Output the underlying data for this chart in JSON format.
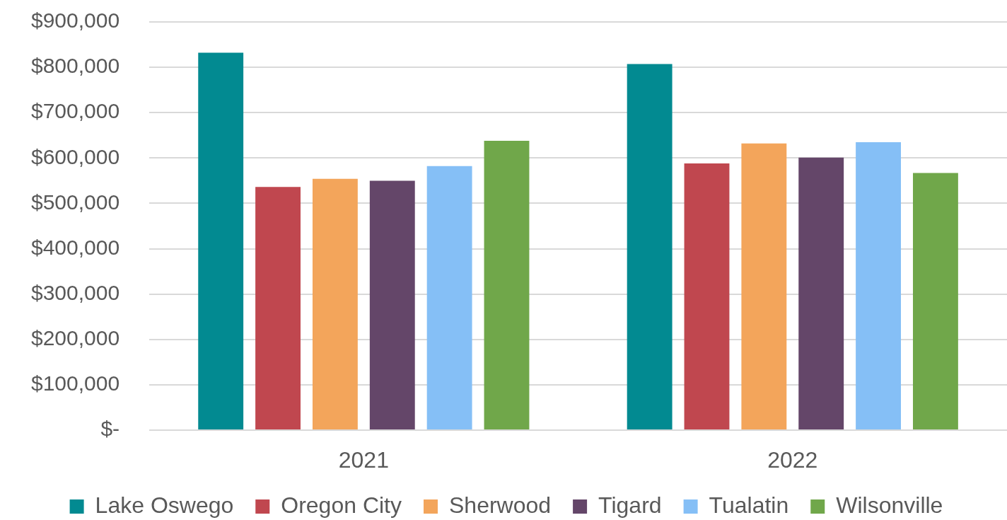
{
  "chart_data": {
    "type": "bar",
    "categories": [
      "2021",
      "2022"
    ],
    "series": [
      {
        "name": "Lake Oswego",
        "color": "#028a91",
        "values": [
          832000,
          807000
        ]
      },
      {
        "name": "Oregon City",
        "color": "#c0474f",
        "values": [
          536000,
          588000
        ]
      },
      {
        "name": "Sherwood",
        "color": "#f3a55b",
        "values": [
          554000,
          632000
        ]
      },
      {
        "name": "Tigard",
        "color": "#644669",
        "values": [
          550000,
          601000
        ]
      },
      {
        "name": "Tualatin",
        "color": "#85bff6",
        "values": [
          582000,
          635000
        ]
      },
      {
        "name": "Wilsonville",
        "color": "#70a74a",
        "values": [
          638000,
          567000
        ]
      }
    ],
    "ylim": [
      0,
      900000
    ],
    "yticks": [
      {
        "value": 0,
        "label": "$-"
      },
      {
        "value": 100000,
        "label": "$100,000"
      },
      {
        "value": 200000,
        "label": "$200,000"
      },
      {
        "value": 300000,
        "label": "$300,000"
      },
      {
        "value": 400000,
        "label": "$400,000"
      },
      {
        "value": 500000,
        "label": "$500,000"
      },
      {
        "value": 600000,
        "label": "$600,000"
      },
      {
        "value": 700000,
        "label": "$700,000"
      },
      {
        "value": 800000,
        "label": "$800,000"
      },
      {
        "value": 900000,
        "label": "$900,000"
      }
    ],
    "grid": "y",
    "legend": "bottom"
  }
}
